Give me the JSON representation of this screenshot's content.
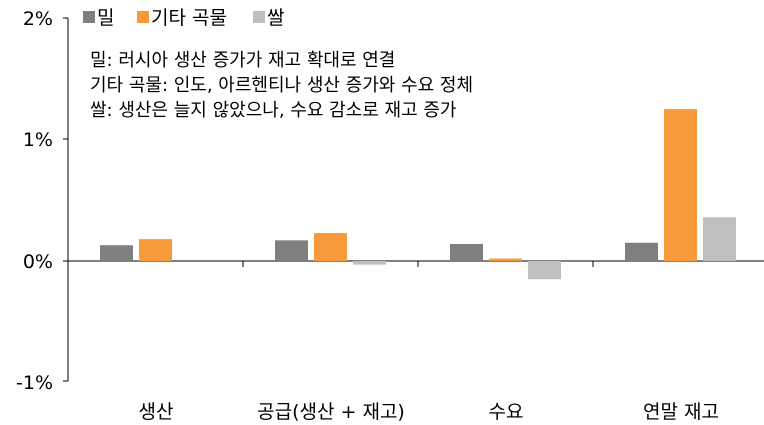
{
  "chart_data": {
    "type": "bar",
    "categories": [
      "생산",
      "공급(생산 + 재고)",
      "수요",
      "연말 재고"
    ],
    "series": [
      {
        "name": "밀",
        "color": "#7f7f7f",
        "values": [
          0.13,
          0.17,
          0.14,
          0.15
        ]
      },
      {
        "name": "기타 곡물",
        "color": "#f79a3b",
        "values": [
          0.18,
          0.23,
          0.02,
          1.25
        ]
      },
      {
        "name": "쌀",
        "color": "#bfbfbf",
        "values": [
          0.0,
          -0.03,
          -0.15,
          0.36
        ]
      }
    ],
    "ylim": [
      -1,
      2
    ],
    "yticks": [
      "-1%",
      "0%",
      "1%",
      "2%"
    ],
    "ytick_values": [
      -1,
      0,
      1,
      2
    ],
    "annotations": [
      "밀: 러시아 생산 증가가 재고 확대로 연결",
      "기타 곡물: 인도, 아르헨티나 생산 증가와 수요 정체",
      "쌀: 생산은 늘지 않았으나, 수요 감소로 재고 증가"
    ],
    "legend_position": "top-left",
    "grid": false
  }
}
